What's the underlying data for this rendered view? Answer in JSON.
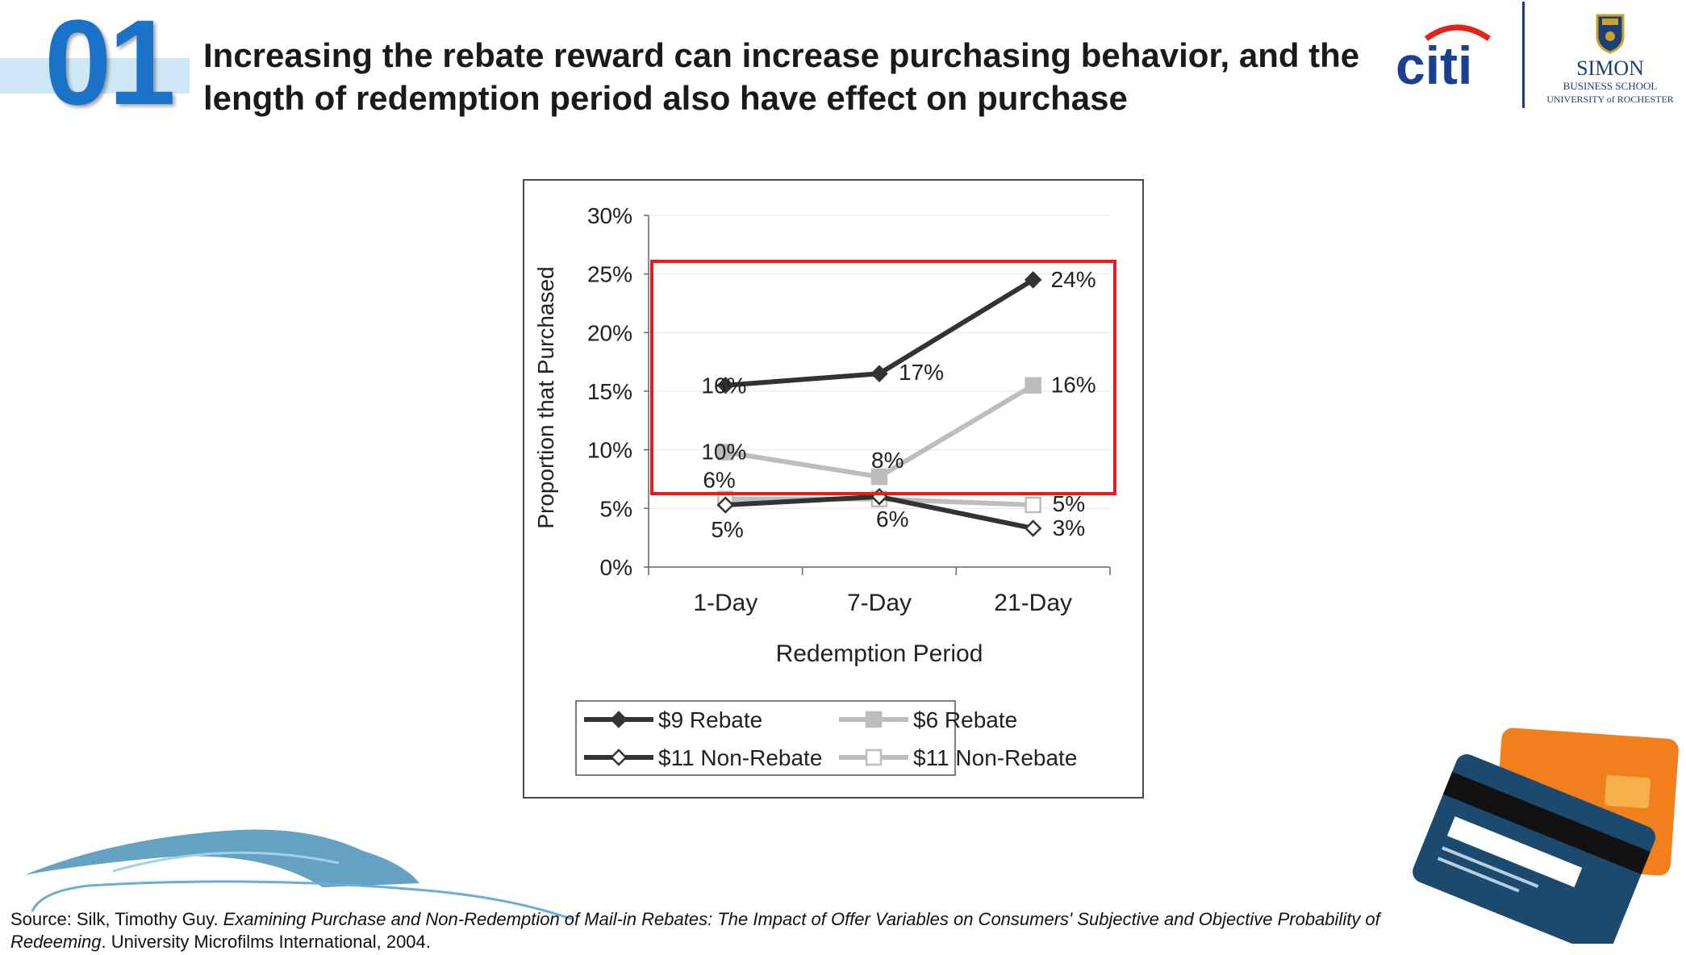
{
  "slide": {
    "number": "01",
    "title": "Increasing the rebate reward can increase purchasing behavior, and the length of redemption period also have effect on purchase"
  },
  "logos": {
    "citi": "citi",
    "simon_line1": "SIMON",
    "simon_line2": "BUSINESS SCHOOL",
    "simon_line3": "UNIVERSITY of ROCHESTER"
  },
  "colors": {
    "accent_blue": "#1a73c8",
    "highlight_red": "#e02020",
    "dark_series": "#333333",
    "light_series": "#bdbdbd"
  },
  "chart_data": {
    "type": "line",
    "title": "",
    "xlabel": "Redemption Period",
    "ylabel": "Proportion that Purchased",
    "categories": [
      "1-Day",
      "7-Day",
      "21-Day"
    ],
    "ylim": [
      0,
      30
    ],
    "yticks": [
      "0%",
      "5%",
      "10%",
      "15%",
      "20%",
      "25%",
      "30%"
    ],
    "grid": "horizontal",
    "legend_position": "bottom",
    "series": [
      {
        "name": "$9 Rebate",
        "values": [
          15.5,
          16.5,
          24.5
        ],
        "labels": [
          "16%",
          "17%",
          "24%"
        ],
        "color": "#333333",
        "marker": "filled-diamond"
      },
      {
        "name": "$6 Rebate",
        "values": [
          9.8,
          7.7,
          15.5
        ],
        "labels": [
          "10%",
          "8%",
          "16%"
        ],
        "color": "#bdbdbd",
        "marker": "filled-square"
      },
      {
        "name": "$11 Non-Rebate",
        "values": [
          5.3,
          6.0,
          3.3
        ],
        "labels": [
          "5%",
          "6%",
          "3%"
        ],
        "color": "#333333",
        "marker": "hollow-diamond"
      },
      {
        "name": "$11 Non-Rebate",
        "values": [
          5.8,
          5.8,
          5.3
        ],
        "labels": [
          "6%",
          "",
          "5%"
        ],
        "color": "#bdbdbd",
        "marker": "hollow-square"
      }
    ]
  },
  "source": {
    "prefix": "Source: Silk, Timothy Guy. ",
    "title_italic": "Examining Purchase and Non-Redemption of Mail-in Rebates: The Impact of Offer Variables on Consumers' Subjective and Objective Probability of Redeeming",
    "suffix": ". University Microfilms International, 2004."
  }
}
